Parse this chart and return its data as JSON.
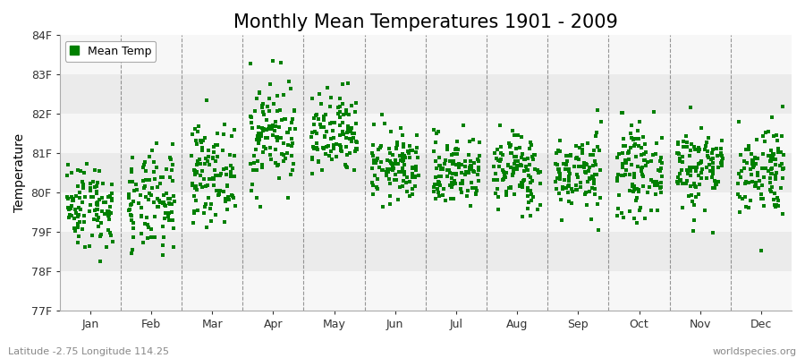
{
  "title": "Monthly Mean Temperatures 1901 - 2009",
  "ylabel": "Temperature",
  "subtitle": "Latitude -2.75 Longitude 114.25",
  "watermark": "worldspecies.org",
  "months": [
    "Jan",
    "Feb",
    "Mar",
    "Apr",
    "May",
    "Jun",
    "Jul",
    "Aug",
    "Sep",
    "Oct",
    "Nov",
    "Dec"
  ],
  "ylim": [
    77.0,
    84.0
  ],
  "yticks": [
    77,
    78,
    79,
    80,
    81,
    82,
    83,
    84
  ],
  "ytick_labels": [
    "77F",
    "78F",
    "79F",
    "80F",
    "81F",
    "82F",
    "83F",
    "84F"
  ],
  "dot_color": "#008000",
  "dot_size": 5,
  "bg_color": "#ffffff",
  "band_color_dark": "#ebebeb",
  "band_color_light": "#f7f7f7",
  "legend_label": "Mean Temp",
  "title_fontsize": 15,
  "label_fontsize": 10,
  "tick_fontsize": 9,
  "n_years": 109,
  "monthly_means": [
    79.7,
    79.7,
    80.5,
    81.5,
    81.4,
    80.65,
    80.55,
    80.55,
    80.5,
    80.55,
    80.65,
    80.6
  ],
  "monthly_stds": [
    0.55,
    0.65,
    0.6,
    0.7,
    0.55,
    0.45,
    0.45,
    0.5,
    0.5,
    0.55,
    0.55,
    0.6
  ],
  "seed": 42,
  "vline_color": "#555555",
  "spine_color": "#aaaaaa"
}
